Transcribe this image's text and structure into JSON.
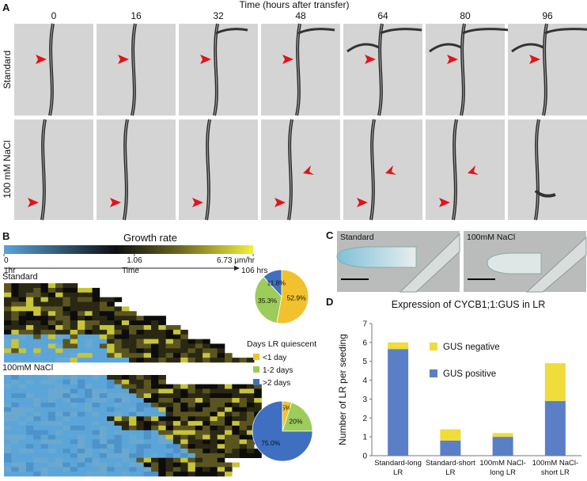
{
  "panel_a": {
    "letter": "A",
    "title": "Time (hours after transfer)",
    "times": [
      "0",
      "16",
      "32",
      "48",
      "64",
      "80",
      "96"
    ],
    "rows": [
      "Standard",
      "100 mM NaCl"
    ]
  },
  "panel_b": {
    "letter": "B",
    "colorbar_title": "Growth rate",
    "colorbar_ticks": [
      0,
      1.06,
      {
        "value": 6.73,
        "label": "6.73 μm/hr"
      }
    ],
    "time_start": "1hr",
    "time_label": "Time",
    "time_end": "106 hrs",
    "groups": [
      "Standard",
      "100mM NaCl"
    ]
  },
  "panel_c": {
    "letter": "C",
    "labels": [
      "Standard",
      "100mM NaCl"
    ]
  },
  "chart_data": [
    {
      "type": "pie",
      "legend_title": "Days LR quiescent",
      "categories": [
        "<1 day",
        "1-2 days",
        ">2 days"
      ],
      "colors": [
        "#f2c12e",
        "#9ccc5a",
        "#3f6fc0"
      ],
      "series": [
        {
          "values": [
            52.9,
            35.3,
            11.8
          ],
          "value_labels": [
            "52.9%",
            "35.3%",
            "11.8%"
          ]
        },
        {
          "values": [
            5,
            20,
            75.0
          ],
          "value_labels": [
            "5%",
            "20%",
            "75.0%"
          ]
        }
      ]
    },
    {
      "type": "stacked_bar",
      "letter": "D",
      "title": "Expression of CYCB1;1:GUS in LR",
      "ylabel": "Number of LR per seeding",
      "categories": [
        "Standard-long LR",
        "Standard-short LR",
        "100mM NaCl-long LR",
        "100mM NaCl-short LR"
      ],
      "series": [
        {
          "name": "GUS positive",
          "color": "#5b7fc7",
          "values": [
            5.65,
            0.8,
            1.0,
            2.9
          ]
        },
        {
          "name": "GUS negative",
          "color": "#f0dc3a",
          "values": [
            0.35,
            0.6,
            0.2,
            2.0
          ]
        }
      ],
      "ylim": [
        0,
        7
      ],
      "yticks": [
        0,
        1,
        2,
        3,
        4,
        5,
        6,
        7
      ]
    }
  ]
}
